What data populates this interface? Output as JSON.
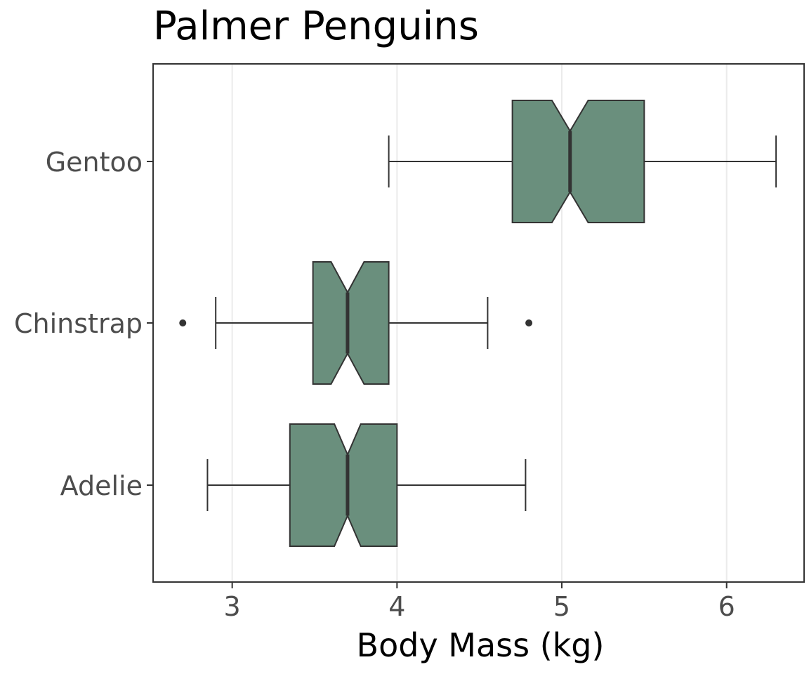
{
  "chart_data": {
    "type": "boxplot",
    "title": "Palmer Penguins",
    "xlabel": "Body Mass (kg)",
    "ylabel": "",
    "xlim": [
      2.52,
      6.47
    ],
    "xticks": [
      3,
      4,
      5,
      6
    ],
    "tick_labels": [
      "3",
      "4",
      "5",
      "6"
    ],
    "orientation": "horizontal",
    "notched": true,
    "box_color": "#6a8f7d",
    "grid": "vertical major gridlines",
    "categories": [
      "Gentoo",
      "Chinstrap",
      "Adelie"
    ],
    "boxes": [
      {
        "category": "Gentoo",
        "whisker_low": 3.95,
        "q1": 4.7,
        "median": 5.05,
        "q3": 5.5,
        "whisker_high": 6.3,
        "notch_low": 4.94,
        "notch_high": 5.16,
        "outliers": []
      },
      {
        "category": "Chinstrap",
        "whisker_low": 2.9,
        "q1": 3.49,
        "median": 3.7,
        "q3": 3.95,
        "whisker_high": 4.55,
        "notch_low": 3.6,
        "notch_high": 3.8,
        "outliers": [
          2.7,
          4.8
        ]
      },
      {
        "category": "Adelie",
        "whisker_low": 2.85,
        "q1": 3.35,
        "median": 3.7,
        "q3": 4.0,
        "whisker_high": 4.78,
        "notch_low": 3.62,
        "notch_high": 3.78,
        "outliers": []
      }
    ]
  }
}
